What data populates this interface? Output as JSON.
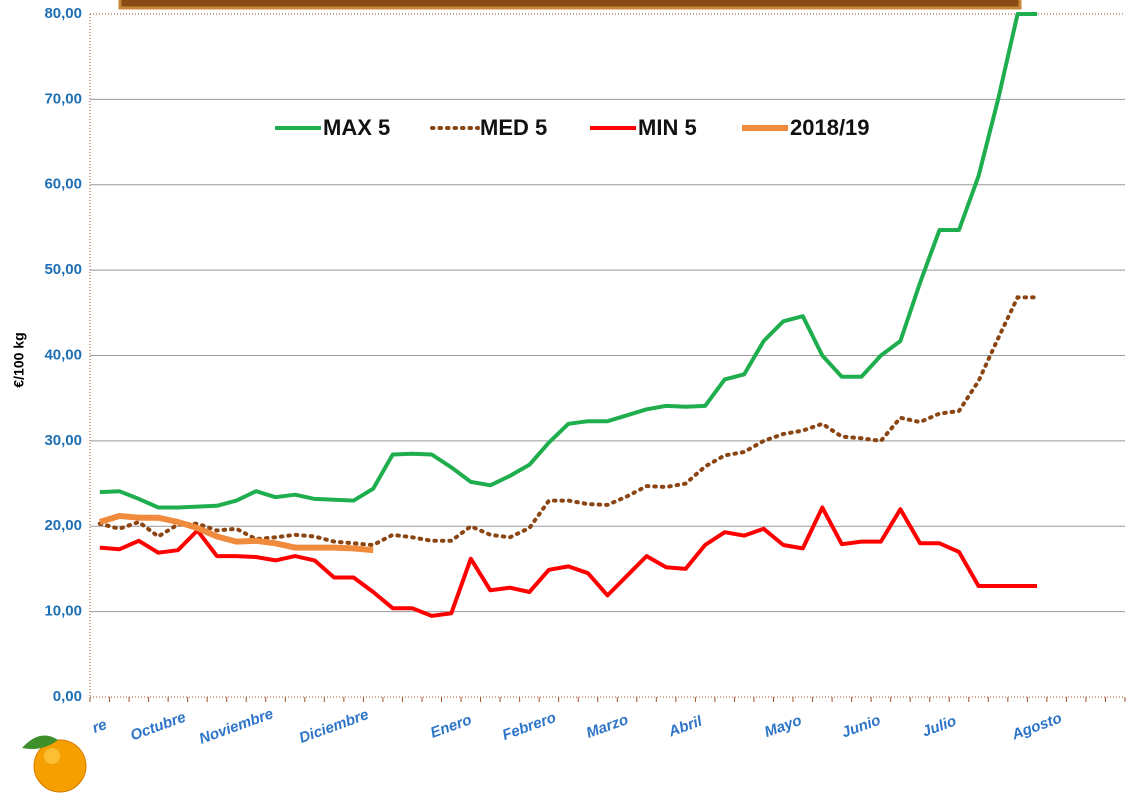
{
  "chart_data": {
    "type": "line",
    "y_label": "€/100 kg",
    "categories": [
      "re",
      null,
      null,
      "Octubre",
      null,
      null,
      null,
      "Noviembre",
      null,
      null,
      null,
      null,
      "Diciembre",
      null,
      null,
      null,
      null,
      null,
      "Enero",
      null,
      null,
      null,
      "Febrero",
      null,
      null,
      null,
      "Marzo",
      null,
      null,
      null,
      "Abril",
      null,
      null,
      null,
      null,
      "Mayo",
      null,
      null,
      null,
      "Junio",
      null,
      null,
      null,
      "Julio",
      null,
      null,
      null,
      null,
      "Agosto",
      null,
      null,
      null,
      null
    ],
    "series": [
      {
        "name": "MAX 5",
        "color": "#1fae4e",
        "style": "solid",
        "values": [
          24,
          24.1,
          23.2,
          22.2,
          22.2,
          22.3,
          22.4,
          23,
          24.1,
          23.4,
          23.7,
          23.2,
          23.1,
          23,
          24.4,
          28.4,
          28.5,
          28.4,
          26.9,
          25.2,
          24.8,
          25.9,
          27.2,
          29.8,
          32,
          32.3,
          32.3,
          33,
          33.7,
          34.1,
          34,
          34.1,
          37.2,
          37.8,
          41.7,
          44,
          44.6,
          40,
          37.5,
          37.5,
          40,
          41.7,
          48.5,
          54.7,
          54.7,
          61,
          70,
          80,
          80,
          null,
          null,
          null,
          null
        ]
      },
      {
        "name": "MED 5",
        "color": "#8b4513",
        "style": "dotted",
        "values": [
          20.3,
          19.7,
          20.5,
          18.8,
          20.2,
          20.3,
          19.5,
          19.7,
          18.5,
          18.7,
          19,
          18.8,
          18.2,
          18,
          17.8,
          19,
          18.7,
          18.3,
          18.3,
          20,
          19,
          18.7,
          19.8,
          23,
          23,
          22.6,
          22.5,
          23.5,
          24.7,
          24.6,
          25,
          27,
          28.3,
          28.7,
          30,
          30.8,
          31.2,
          32,
          30.5,
          30.3,
          30,
          32.7,
          32.2,
          33.2,
          33.5,
          37,
          42,
          46.8,
          46.8,
          null,
          null,
          null,
          null
        ]
      },
      {
        "name": "MIN 5",
        "color": "#ff0000",
        "style": "solid",
        "values": [
          17.5,
          17.3,
          18.3,
          16.9,
          17.2,
          19.5,
          16.5,
          16.5,
          16.4,
          16,
          16.5,
          16,
          14,
          14,
          12.3,
          10.4,
          10.4,
          9.5,
          9.8,
          16.2,
          12.5,
          12.8,
          12.3,
          14.9,
          15.3,
          14.5,
          11.9,
          14.2,
          16.5,
          15.2,
          15,
          17.8,
          19.3,
          18.9,
          19.7,
          17.8,
          17.4,
          22.2,
          17.9,
          18.2,
          18.2,
          22,
          18,
          18,
          17,
          13,
          13,
          13,
          13,
          null,
          null,
          null,
          null
        ]
      },
      {
        "name": "2018/19",
        "color": "#f08a3c",
        "style": "solid",
        "values": [
          20.5,
          21.2,
          21,
          21,
          20.5,
          19.8,
          18.8,
          18.2,
          18.3,
          18,
          17.5,
          17.5,
          17.5,
          17.4,
          17.2,
          null,
          null,
          null,
          null,
          null,
          null,
          null,
          null,
          null,
          null,
          null,
          null,
          null,
          null,
          null,
          null,
          null,
          null,
          null,
          null,
          null,
          null,
          null,
          null,
          null,
          null,
          null,
          null,
          null,
          null,
          null,
          null,
          null,
          null,
          null,
          null,
          null,
          null
        ]
      }
    ],
    "ylim": [
      0,
      80
    ],
    "yticks": [
      {
        "value": 0,
        "label": "0,00"
      },
      {
        "value": 10,
        "label": "10,00"
      },
      {
        "value": 20,
        "label": "20,00"
      },
      {
        "value": 30,
        "label": "30,00"
      },
      {
        "value": 40,
        "label": "40,00"
      },
      {
        "value": 50,
        "label": "50,00"
      },
      {
        "value": 60,
        "label": "60,00"
      },
      {
        "value": 70,
        "label": "70,00"
      },
      {
        "value": 80,
        "label": "80,00"
      }
    ],
    "grid": true
  }
}
